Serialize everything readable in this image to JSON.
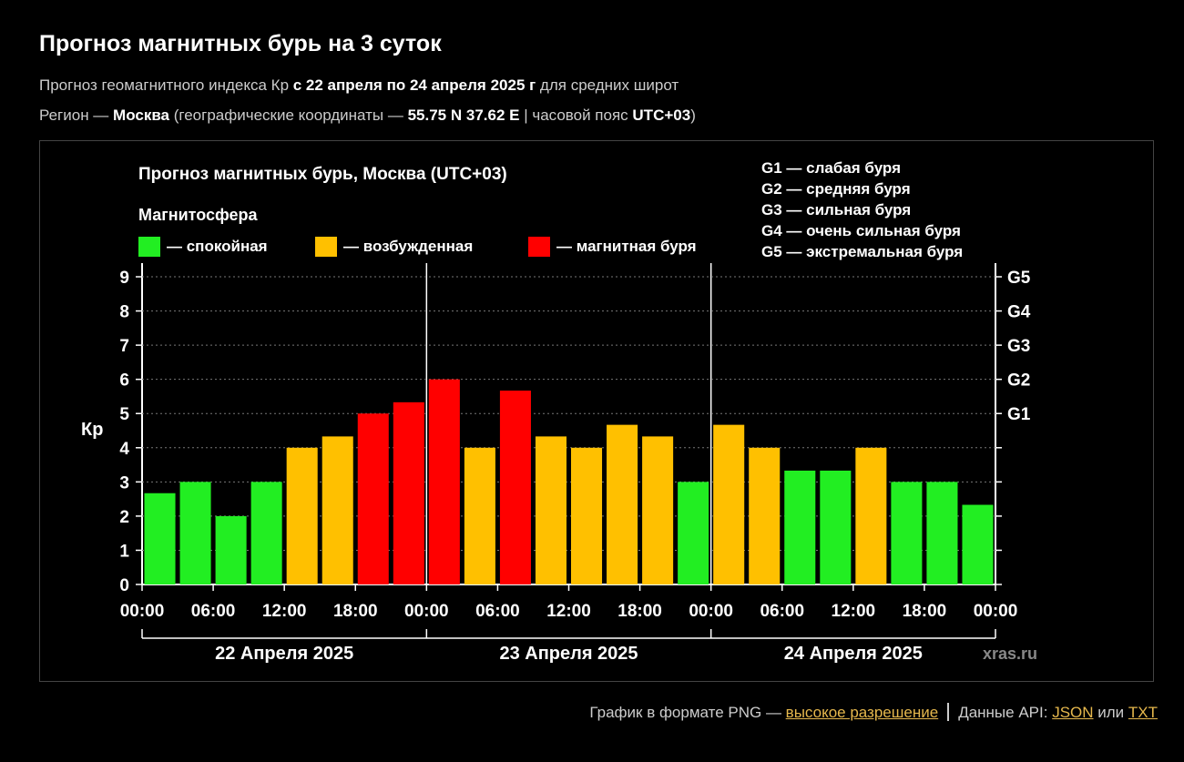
{
  "page": {
    "title": "Прогноз магнитных бурь на 3 суток",
    "subtitle_1_a": "Прогноз геомагнитного индекса Кр ",
    "subtitle_1_b": "с 22 апреля по 24 апреля 2025 г",
    "subtitle_1_c": " для средних широт",
    "subtitle_2_a": "Регион — ",
    "subtitle_2_b": "Москва",
    "subtitle_2_c": " (географические координаты — ",
    "subtitle_2_d": "55.75 N 37.62 E",
    "subtitle_2_e": " | часовой пояс ",
    "subtitle_2_f": "UTC+03",
    "subtitle_2_g": ")"
  },
  "footer": {
    "png_text": "График в формате PNG — ",
    "png_link": "высокое разрешение",
    "api_text": "Данные API: ",
    "json_link": "JSON",
    "or_text": " или ",
    "txt_link": "TXT"
  },
  "colors": {
    "quiet": "#22ee22",
    "excited": "#ffc000",
    "storm": "#ff0000"
  },
  "chart_data": {
    "type": "bar",
    "title": "Прогноз магнитных бурь, Москва (UTC+03)",
    "ylabel": "Кр",
    "ylim": [
      0,
      9
    ],
    "y_ticks": [
      "0",
      "1",
      "2",
      "3",
      "4",
      "5",
      "6",
      "7",
      "8",
      "9"
    ],
    "right_ticks": [
      {
        "value": 5,
        "label": "G1"
      },
      {
        "value": 6,
        "label": "G2"
      },
      {
        "value": 7,
        "label": "G3"
      },
      {
        "value": 8,
        "label": "G4"
      },
      {
        "value": 9,
        "label": "G5"
      }
    ],
    "x_tick_labels": [
      "00:00",
      "06:00",
      "12:00",
      "18:00",
      "00:00",
      "06:00",
      "12:00",
      "18:00",
      "00:00",
      "06:00",
      "12:00",
      "18:00",
      "00:00"
    ],
    "days": [
      "22 Апреля 2025",
      "23 Апреля 2025",
      "24 Апреля 2025"
    ],
    "legend_title": "Магнитосфера",
    "legend": [
      {
        "label": "— спокойная",
        "color": "quiet"
      },
      {
        "label": "— возбужденная",
        "color": "excited"
      },
      {
        "label": "— магнитная буря",
        "color": "storm"
      }
    ],
    "g_legend": [
      "G1 — слабая буря",
      "G2 — средняя буря",
      "G3 — сильная буря",
      "G4 — очень сильная буря",
      "G5 — экстремальная буря"
    ],
    "watermark": "xras.ru",
    "grid": "dotted",
    "values": [
      2.67,
      3.0,
      2.0,
      3.0,
      4.0,
      4.33,
      5.0,
      5.33,
      6.0,
      4.0,
      5.67,
      4.33,
      4.0,
      4.67,
      4.33,
      3.0,
      4.67,
      4.0,
      3.33,
      3.33,
      4.0,
      3.0,
      3.0,
      2.33
    ],
    "levels": [
      "quiet",
      "quiet",
      "quiet",
      "quiet",
      "excited",
      "excited",
      "storm",
      "storm",
      "storm",
      "excited",
      "storm",
      "excited",
      "excited",
      "excited",
      "excited",
      "quiet",
      "excited",
      "excited",
      "quiet",
      "quiet",
      "excited",
      "quiet",
      "quiet",
      "quiet"
    ]
  }
}
